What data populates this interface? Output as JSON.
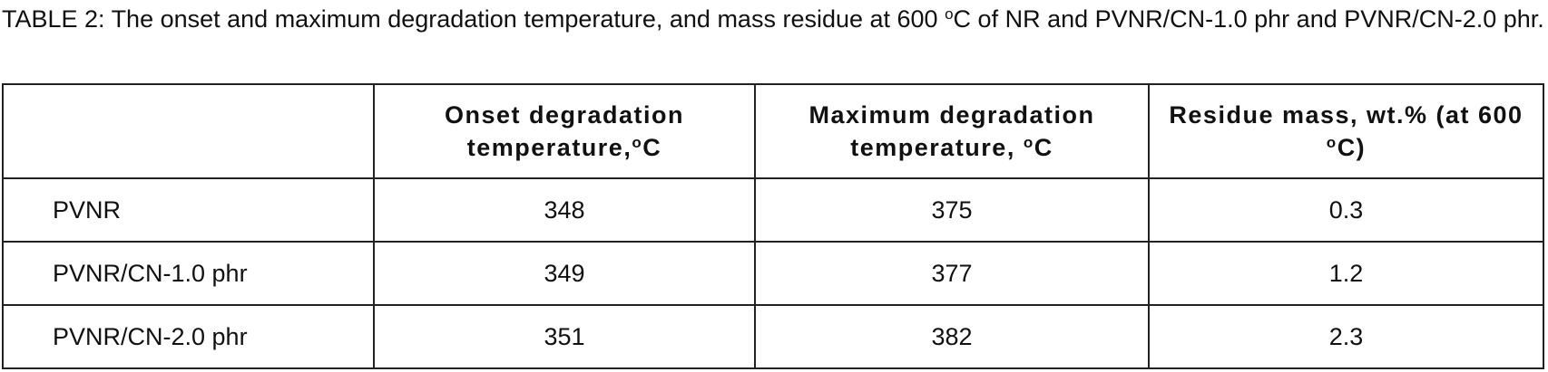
{
  "caption": {
    "parts": [
      "TABLE 2: The onset and maximum degradation temperature, and mass residue at 600 ",
      "o",
      "C of NR and PVNR/CN-1.0 phr and PVNR/CN-2.0 phr."
    ]
  },
  "table": {
    "header": [
      [],
      [
        "Onset degradation temperature,",
        "o",
        "C"
      ],
      [
        "Maximum degradation temperature, ",
        "o",
        "C"
      ],
      [
        "Residue mass, wt.% (at 600 ",
        "o",
        "C)"
      ]
    ],
    "rows": [
      [
        "PVNR",
        348,
        375,
        0.3
      ],
      [
        "PVNR/CN-1.0 phr",
        349,
        377,
        1.2
      ],
      [
        "PVNR/CN-2.0 phr",
        351,
        382,
        2.3
      ]
    ]
  }
}
